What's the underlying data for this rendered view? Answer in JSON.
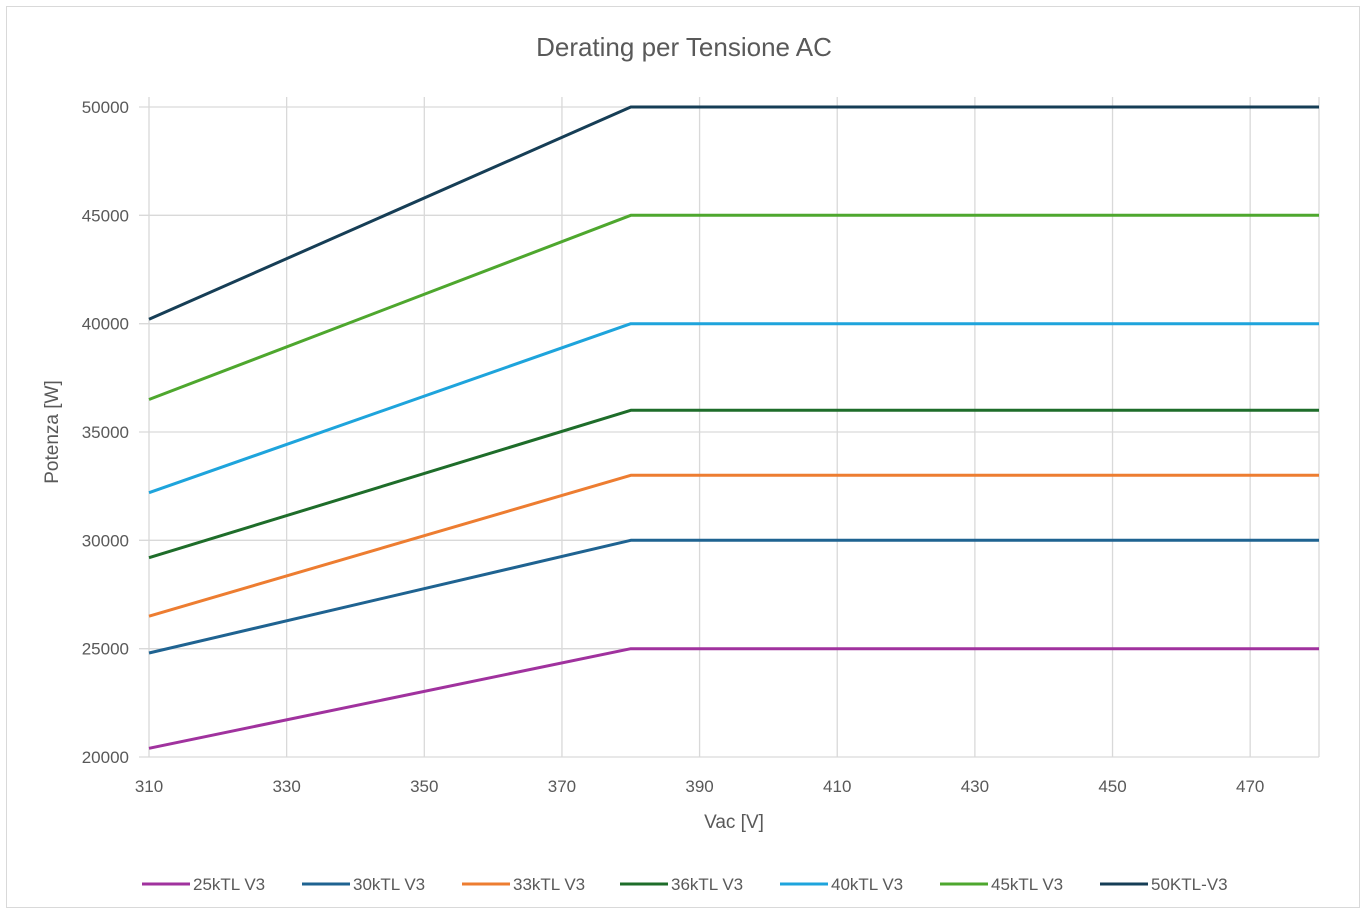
{
  "chart_data": {
    "type": "line",
    "title": "Derating per Tensione AC",
    "xlabel": "Vac [V]",
    "ylabel": "Potenza [W]",
    "xlim": [
      310,
      480
    ],
    "ylim": [
      20000,
      50000
    ],
    "x_ticks": [
      310,
      330,
      350,
      370,
      390,
      410,
      430,
      450,
      470
    ],
    "y_ticks": [
      20000,
      25000,
      30000,
      35000,
      40000,
      45000,
      50000
    ],
    "grid": true,
    "legend_position": "bottom",
    "series": [
      {
        "name": "25kTL V3",
        "color": "#a0329e",
        "points": [
          [
            310,
            20400
          ],
          [
            380,
            25000
          ],
          [
            480,
            25000
          ]
        ]
      },
      {
        "name": "30kTL V3",
        "color": "#1f6391",
        "points": [
          [
            310,
            24800
          ],
          [
            380,
            30000
          ],
          [
            480,
            30000
          ]
        ]
      },
      {
        "name": "33kTL V3",
        "color": "#ed7d31",
        "points": [
          [
            310,
            26500
          ],
          [
            380,
            33000
          ],
          [
            480,
            33000
          ]
        ]
      },
      {
        "name": "36kTL V3",
        "color": "#1e6d2a",
        "points": [
          [
            310,
            29200
          ],
          [
            380,
            36000
          ],
          [
            480,
            36000
          ]
        ]
      },
      {
        "name": "40kTL V3",
        "color": "#1ea4dc",
        "points": [
          [
            310,
            32200
          ],
          [
            380,
            40000
          ],
          [
            480,
            40000
          ]
        ]
      },
      {
        "name": "45kTL V3",
        "color": "#4ea72e",
        "points": [
          [
            310,
            36500
          ],
          [
            380,
            45000
          ],
          [
            480,
            45000
          ]
        ]
      },
      {
        "name": "50KTL-V3",
        "color": "#163e56",
        "points": [
          [
            310,
            40200
          ],
          [
            380,
            50000
          ],
          [
            480,
            50000
          ]
        ]
      }
    ]
  }
}
